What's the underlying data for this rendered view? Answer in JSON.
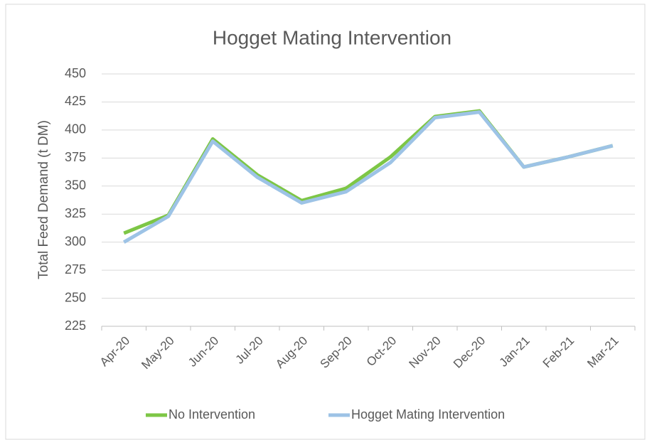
{
  "chart_data": {
    "type": "line",
    "title": "Hogget Mating Intervention",
    "y_label": "Total Feed Demand (t DM)",
    "categories": [
      "Apr-20",
      "May-20",
      "Jun-20",
      "Jul-20",
      "Aug-20",
      "Sep-20",
      "Oct-20",
      "Nov-20",
      "Dec-20",
      "Jan-21",
      "Feb-21",
      "Mar-21"
    ],
    "series": [
      {
        "name": "No Intervention",
        "color": "#7dc646",
        "values": [
          308,
          324,
          392,
          360,
          337,
          348,
          376,
          412,
          417,
          367,
          376,
          386
        ]
      },
      {
        "name": "Hogget Mating Intervention",
        "color": "#9dc3e6",
        "values": [
          300,
          323,
          390,
          358,
          335,
          345,
          371,
          411,
          416,
          367,
          376,
          386
        ]
      }
    ],
    "ylim": [
      225,
      450
    ],
    "yticks": [
      225,
      250,
      275,
      300,
      325,
      350,
      375,
      400,
      425,
      450
    ],
    "grid": true,
    "legend": "bottom"
  }
}
